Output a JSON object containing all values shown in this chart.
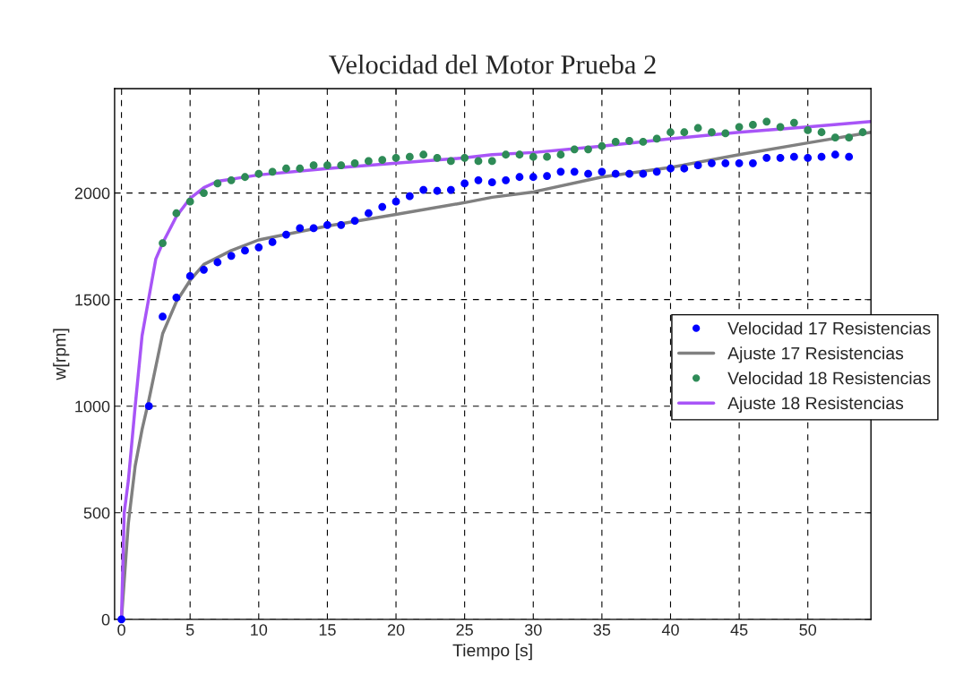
{
  "chart_data": {
    "type": "scatter",
    "title": "Velocidad del Motor Prueba 2",
    "xlabel": "Tiempo [s]",
    "ylabel": "w[rpm]",
    "xlim": [
      -0.5,
      54.6
    ],
    "ylim": [
      0,
      2490
    ],
    "xticks": [
      0,
      5,
      10,
      15,
      20,
      25,
      30,
      35,
      40,
      45,
      50
    ],
    "yticks": [
      0,
      500,
      1000,
      1500,
      2000
    ],
    "grid": true,
    "legend": "center right",
    "series": [
      {
        "name": "Velocidad 17 Resistencias",
        "marker": "circle",
        "color": "#0000ff",
        "x": [
          0,
          2,
          3,
          4,
          5,
          6,
          7,
          8,
          9,
          10,
          11,
          12,
          13,
          14,
          15,
          16,
          17,
          18,
          19,
          20,
          21,
          22,
          23,
          24,
          25,
          26,
          27,
          28,
          29,
          30,
          31,
          32,
          33,
          34,
          35,
          36,
          37,
          38,
          39,
          40,
          41,
          42,
          43,
          44,
          45,
          46,
          47,
          48,
          49,
          50,
          51,
          52,
          53
        ],
        "values": [
          0,
          1000,
          1420,
          1510,
          1610,
          1640,
          1675,
          1705,
          1730,
          1745,
          1770,
          1805,
          1835,
          1835,
          1850,
          1850,
          1870,
          1905,
          1935,
          1960,
          1985,
          2015,
          2010,
          2015,
          2045,
          2060,
          2050,
          2060,
          2075,
          2075,
          2080,
          2100,
          2100,
          2090,
          2100,
          2090,
          2090,
          2090,
          2100,
          2115,
          2115,
          2130,
          2140,
          2140,
          2140,
          2140,
          2165,
          2165,
          2170,
          2165,
          2170,
          2180,
          2170
        ]
      },
      {
        "name": "Ajuste 17 Resistencias",
        "type": "line",
        "line_style": "solid",
        "color": "#808080",
        "x": [
          0,
          0.5,
          1,
          1.5,
          2,
          3,
          4,
          5,
          6,
          8,
          10,
          15,
          20,
          25,
          27,
          30,
          35,
          40,
          45,
          50,
          54.6
        ],
        "values": [
          0,
          450,
          720,
          890,
          1030,
          1340,
          1490,
          1590,
          1665,
          1730,
          1780,
          1845,
          1900,
          1955,
          1980,
          2005,
          2075,
          2120,
          2180,
          2235,
          2285
        ]
      },
      {
        "name": "Velocidad 18 Resistencias",
        "marker": "circle",
        "color": "#2e8b57",
        "x": [
          3,
          4,
          5,
          6,
          7,
          8,
          9,
          10,
          11,
          12,
          13,
          14,
          15,
          16,
          17,
          18,
          19,
          20,
          21,
          22,
          23,
          24,
          25,
          26,
          27,
          28,
          29,
          30,
          31,
          32,
          33,
          34,
          35,
          36,
          37,
          38,
          39,
          40,
          41,
          42,
          43,
          44,
          45,
          46,
          47,
          48,
          49,
          50,
          51,
          52,
          53,
          54
        ],
        "values": [
          1765,
          1905,
          1960,
          2000,
          2045,
          2060,
          2075,
          2090,
          2100,
          2115,
          2115,
          2130,
          2130,
          2130,
          2140,
          2150,
          2155,
          2165,
          2170,
          2180,
          2165,
          2150,
          2165,
          2150,
          2150,
          2180,
          2180,
          2170,
          2170,
          2180,
          2205,
          2205,
          2220,
          2240,
          2245,
          2240,
          2255,
          2285,
          2285,
          2305,
          2285,
          2280,
          2310,
          2320,
          2335,
          2310,
          2330,
          2295,
          2285,
          2260,
          2260,
          2285
        ]
      },
      {
        "name": "Ajuste 18 Resistencias",
        "type": "line",
        "line_style": "solid",
        "color": "#a855f7",
        "x": [
          0,
          0.2,
          0.5,
          1,
          1.5,
          2,
          2.5,
          3,
          4,
          5,
          6,
          7,
          8,
          10,
          15,
          20,
          25,
          27,
          30,
          35,
          40,
          45,
          50,
          54.6
        ],
        "values": [
          0,
          500,
          650,
          1000,
          1330,
          1510,
          1690,
          1765,
          1890,
          1975,
          2025,
          2055,
          2065,
          2085,
          2115,
          2140,
          2165,
          2180,
          2190,
          2220,
          2255,
          2285,
          2310,
          2335
        ]
      }
    ]
  }
}
